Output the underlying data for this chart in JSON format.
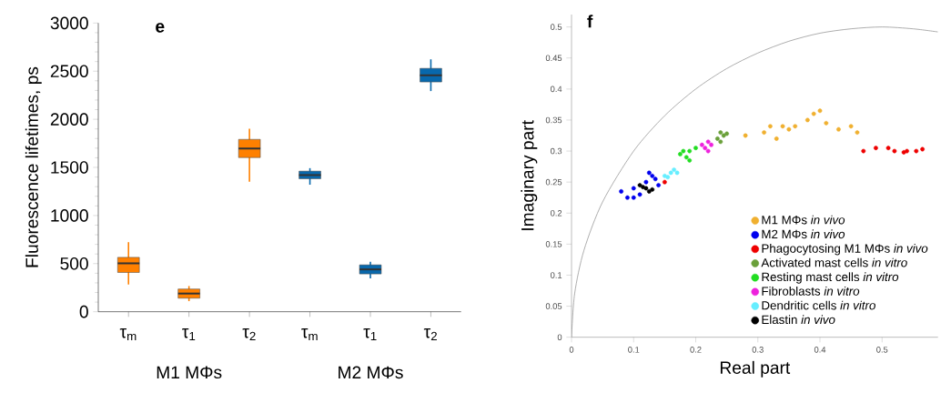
{
  "chart_data": [
    {
      "type": "box",
      "title": "e",
      "ylabel": "Fluorescence lifetimes, ps",
      "categories": [
        "τ$_{m}$",
        "τ$_{1}$",
        "τ$_{2}$",
        "τ$_{m}$",
        "τ$_{1}$",
        "τ$_{2}$"
      ],
      "ylim": [
        0,
        3000
      ],
      "yticks": [
        0,
        500,
        1000,
        1500,
        2000,
        2500,
        3000
      ],
      "annotations": [
        "M1 MΦs",
        "M2 MΦs"
      ],
      "series": [
        {
          "color": "#ff8000",
          "boxes": [
            {
              "low": 283,
              "q1": 408,
              "median": 503,
              "q3": 565,
              "high": 723
            },
            {
              "low": 110,
              "q1": 141,
              "median": 189,
              "q3": 236,
              "high": 267
            },
            {
              "low": 1351,
              "q1": 1602,
              "median": 1696,
              "q3": 1791,
              "high": 1901
            },
            null,
            null,
            null
          ]
        },
        {
          "color": "#0868ac",
          "boxes": [
            null,
            null,
            null,
            {
              "low": 1320,
              "q1": 1382,
              "median": 1420,
              "q3": 1461,
              "high": 1492
            },
            {
              "low": 346,
              "q1": 393,
              "median": 440,
              "q3": 487,
              "high": 518
            },
            {
              "low": 2293,
              "q1": 2388,
              "median": 2457,
              "q3": 2529,
              "high": 2623
            }
          ]
        }
      ]
    },
    {
      "type": "scatter",
      "title": "f",
      "xlabel": "Real part",
      "ylabel": "Imaginary part",
      "xlim": [
        0,
        0.59
      ],
      "ylim": [
        0,
        0.52
      ],
      "xticks": [
        0,
        0.1,
        0.2,
        0.3,
        0.4,
        0.5
      ],
      "yticks": [
        0,
        0.05,
        0.1,
        0.15,
        0.2,
        0.25,
        0.3,
        0.35,
        0.4,
        0.45,
        0.5
      ],
      "legend": "bottom right",
      "series": [
        {
          "type": "line",
          "color": "#999999",
          "x": [
            0,
            0.005,
            0.02,
            0.05,
            0.1,
            0.15,
            0.2,
            0.25,
            0.3,
            0.35,
            0.4,
            0.45,
            0.5,
            0.55,
            0.59
          ],
          "values": [
            0,
            0.07,
            0.14,
            0.218,
            0.3,
            0.357,
            0.4,
            0.433,
            0.458,
            0.477,
            0.49,
            0.497,
            0.5,
            0.497,
            0.492
          ]
        },
        {
          "name": "M1 MΦs *in vivo*",
          "color": "#f0b030",
          "x": [
            0.28,
            0.31,
            0.32,
            0.34,
            0.36,
            0.38,
            0.39,
            0.4,
            0.41,
            0.43,
            0.45,
            0.46,
            0.33,
            0.35
          ],
          "values": [
            0.325,
            0.33,
            0.34,
            0.34,
            0.34,
            0.35,
            0.36,
            0.365,
            0.345,
            0.335,
            0.34,
            0.33,
            0.32,
            0.335
          ]
        },
        {
          "name": "M2 MΦs *in vivo*",
          "color": "#0000ee",
          "x": [
            0.08,
            0.09,
            0.1,
            0.11,
            0.12,
            0.13,
            0.14,
            0.125,
            0.135,
            0.1
          ],
          "values": [
            0.235,
            0.225,
            0.24,
            0.23,
            0.25,
            0.26,
            0.245,
            0.265,
            0.255,
            0.225
          ]
        },
        {
          "name": "Phagocytosing M1 MΦs *in vivo*",
          "color": "#ee0000",
          "x": [
            0.15,
            0.47,
            0.49,
            0.51,
            0.52,
            0.54,
            0.555,
            0.565,
            0.535
          ],
          "values": [
            0.25,
            0.3,
            0.305,
            0.305,
            0.3,
            0.3,
            0.3,
            0.303,
            0.298
          ]
        },
        {
          "name": "Activated mast cells *in vitro*",
          "color": "#6aa03a",
          "x": [
            0.235,
            0.24,
            0.245,
            0.25,
            0.24
          ],
          "values": [
            0.32,
            0.33,
            0.325,
            0.328,
            0.315
          ]
        },
        {
          "name": "Resting mast cells *in vitro*",
          "color": "#22dd22",
          "x": [
            0.175,
            0.185,
            0.19,
            0.18,
            0.2,
            0.19
          ],
          "values": [
            0.295,
            0.29,
            0.3,
            0.3,
            0.305,
            0.285
          ]
        },
        {
          "name": "Fibroblasts *in vitro*",
          "color": "#ee22dd",
          "x": [
            0.21,
            0.215,
            0.22,
            0.225,
            0.22
          ],
          "values": [
            0.31,
            0.305,
            0.315,
            0.31,
            0.3
          ]
        },
        {
          "name": "Dendritic cells *in vitro*",
          "color": "#66eeff",
          "x": [
            0.15,
            0.16,
            0.165,
            0.155,
            0.17
          ],
          "values": [
            0.26,
            0.265,
            0.27,
            0.258,
            0.265
          ]
        },
        {
          "name": "Elastin *in vivo*",
          "color": "#000000",
          "x": [
            0.11,
            0.12,
            0.125,
            0.13,
            0.115
          ],
          "values": [
            0.245,
            0.24,
            0.235,
            0.238,
            0.242
          ]
        }
      ]
    }
  ]
}
